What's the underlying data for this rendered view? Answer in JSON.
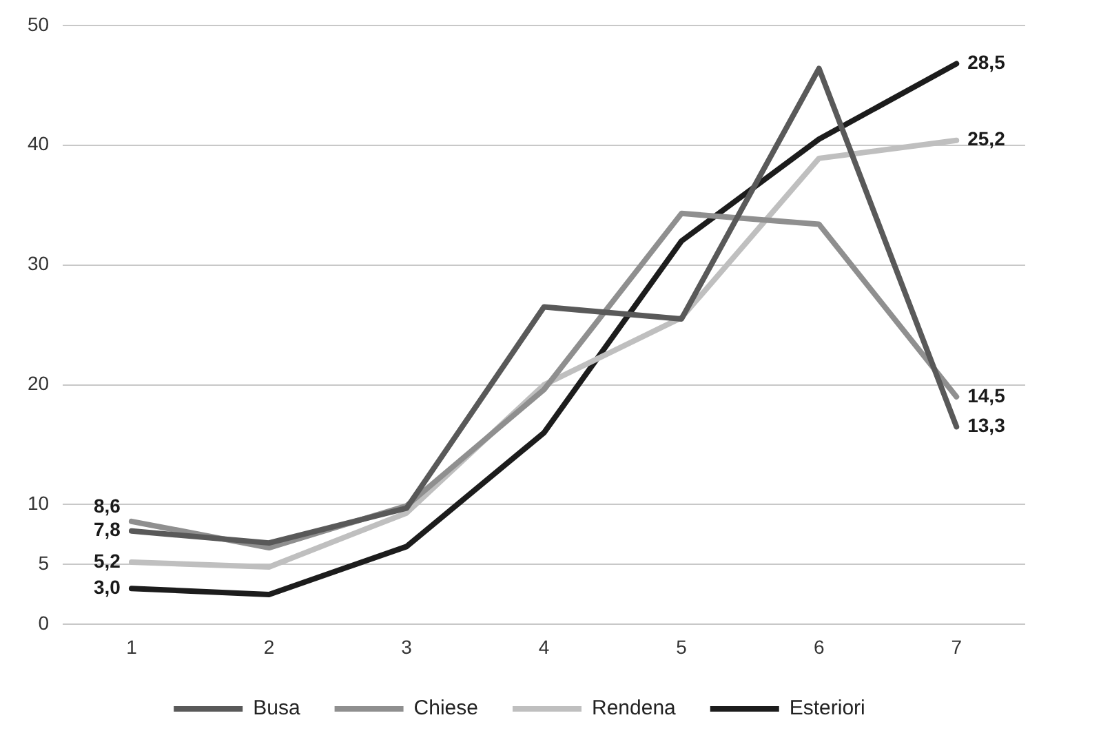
{
  "chart_data": {
    "type": "line",
    "categories": [
      "1",
      "2",
      "3",
      "4",
      "5",
      "6",
      "7"
    ],
    "ylim": [
      0,
      50
    ],
    "yticks": [
      0,
      5,
      10,
      20,
      30,
      40,
      50
    ],
    "grid": "y",
    "legend": "bottom",
    "marker": "none",
    "line_style": "solid",
    "series": [
      {
        "name": "Busa",
        "color": "#595959",
        "values": [
          7.8,
          6.8,
          9.7,
          26.5,
          25.5,
          46.4,
          16.5
        ],
        "value_labels": [
          "7,8",
          null,
          null,
          null,
          null,
          null,
          null
        ]
      },
      {
        "name": "Chiese",
        "color": "#8f8f8f",
        "values": [
          8.6,
          6.4,
          9.9,
          19.6,
          34.3,
          33.4,
          19.0
        ],
        "value_labels": [
          "8,6",
          null,
          null,
          null,
          null,
          null,
          null
        ]
      },
      {
        "name": "Rendena",
        "color": "#bfbfbf",
        "values": [
          5.2,
          4.8,
          9.3,
          20,
          25.6,
          38.9,
          40.4
        ],
        "value_labels": [
          "5,2",
          null,
          null,
          null,
          null,
          null,
          null
        ]
      },
      {
        "name": "Esteriori",
        "color": "#1c1c1c",
        "values": [
          3.0,
          2.5,
          6.5,
          16,
          32,
          40.5,
          46.8
        ],
        "value_labels": [
          "3,0",
          null,
          null,
          null,
          null,
          null,
          null
        ]
      }
    ],
    "annotations": [
      {
        "text": "13,3",
        "x": "7",
        "y": 16.5
      },
      {
        "text": "14,5",
        "x": "7",
        "y": 19.0
      },
      {
        "text": "25,2",
        "x": "7",
        "y": 40.4
      },
      {
        "text": "28,5",
        "x": "7",
        "y": 46.8
      }
    ]
  }
}
